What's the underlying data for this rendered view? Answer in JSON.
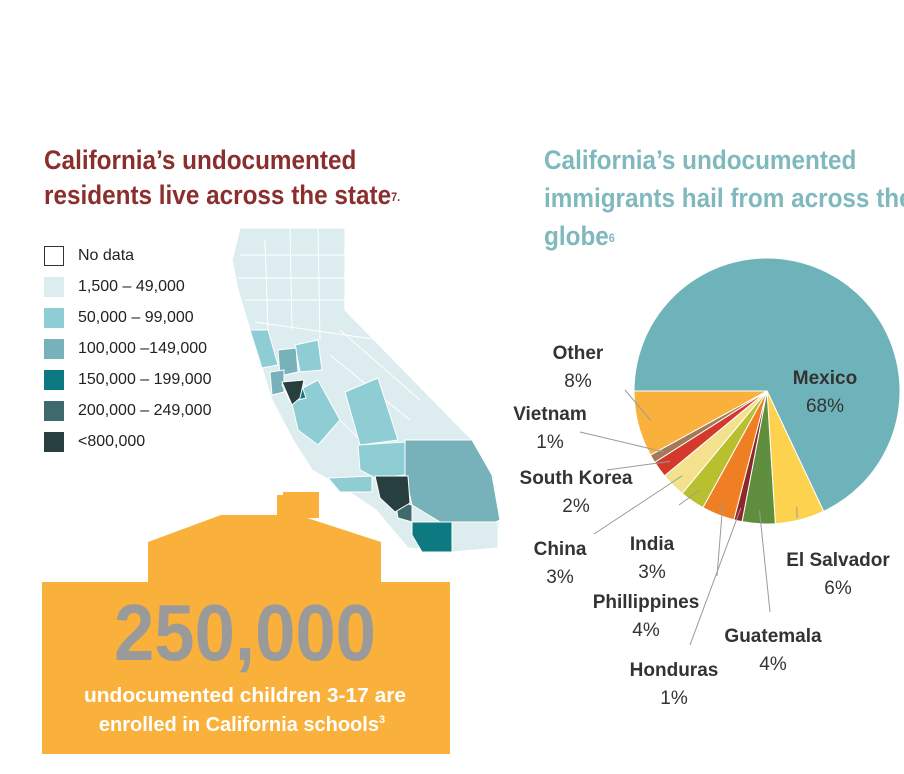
{
  "left_panel": {
    "title": "California’s undocumented residents live across the state",
    "title_note": "7.",
    "legend": [
      {
        "label": "No data",
        "color": "#ffffff"
      },
      {
        "label": "1,500 – 49,000",
        "color": "#dcecef"
      },
      {
        "label": "50,000 – 99,000",
        "color": "#8fcdd5"
      },
      {
        "label": "100,000 –149,000",
        "color": "#77b2ba"
      },
      {
        "label": "150,000 – 199,000",
        "color": "#0c7a80"
      },
      {
        "label": "200,000 – 249,000",
        "color": "#3e6a6d"
      },
      {
        "label": "<800,000",
        "color": "#283f40"
      }
    ]
  },
  "callout": {
    "number": "250,000",
    "text_line1": "undocumented children 3-17 are",
    "text_line2": "enrolled in California schools",
    "note": "3",
    "color": "#f9b13b"
  },
  "right_panel": {
    "title": "California’s undocumented immigrants hail from across the globe",
    "title_note": "6"
  },
  "chart_data": {
    "type": "pie",
    "title": "California’s undocumented immigrants hail from across the globe",
    "slices": [
      {
        "label": "Mexico",
        "value": 68,
        "display": "68%",
        "color": "#6fb3ba"
      },
      {
        "label": "El Salvador",
        "value": 6,
        "display": "6%",
        "color": "#fcd24e"
      },
      {
        "label": "Guatemala",
        "value": 4,
        "display": "4%",
        "color": "#5f8e3e"
      },
      {
        "label": "Honduras",
        "value": 1,
        "display": "1%",
        "color": "#8e2727"
      },
      {
        "label": "Phillippines",
        "value": 4,
        "display": "4%",
        "color": "#ef7f22"
      },
      {
        "label": "India",
        "value": 3,
        "display": "3%",
        "color": "#b9c02f"
      },
      {
        "label": "China",
        "value": 3,
        "display": "3%",
        "color": "#f4e18e"
      },
      {
        "label": "South Korea",
        "value": 2,
        "display": "2%",
        "color": "#d43a2b"
      },
      {
        "label": "Vietnam",
        "value": 1,
        "display": "1%",
        "color": "#a37a57"
      },
      {
        "label": "Other",
        "value": 8,
        "display": "8%",
        "color": "#f9b13b"
      }
    ]
  }
}
